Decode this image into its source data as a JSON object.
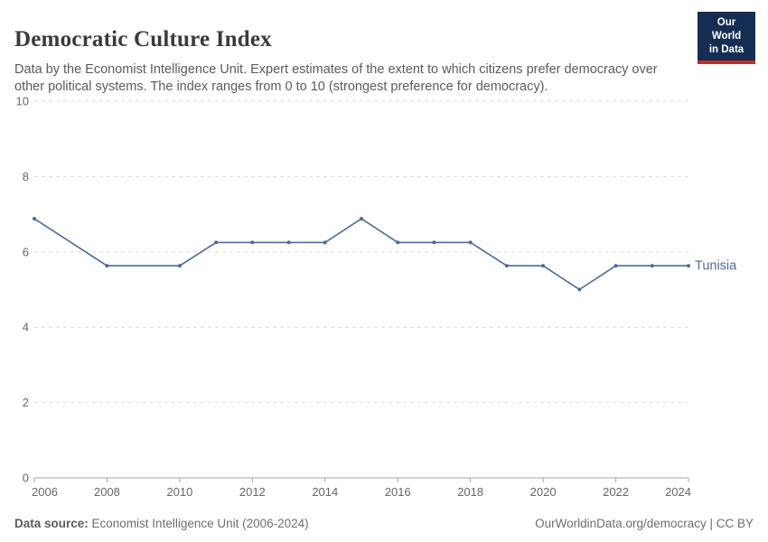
{
  "header": {
    "title": "Democratic Culture Index",
    "subtitle": "Data by the Economist Intelligence Unit. Expert estimates of the extent to which citizens prefer democracy over other political systems. The index ranges from 0 to 10 (strongest preference for democracy).",
    "logo": {
      "line1": "Our World",
      "line2": "in Data"
    }
  },
  "chart_data": {
    "type": "line",
    "title": "Democratic Culture Index",
    "xlabel": "",
    "ylabel": "",
    "xlim": [
      2006,
      2024
    ],
    "ylim": [
      0,
      10
    ],
    "x_ticks": [
      2006,
      2008,
      2010,
      2012,
      2014,
      2016,
      2018,
      2020,
      2022,
      2024
    ],
    "y_ticks": [
      0,
      2,
      4,
      6,
      8,
      10
    ],
    "grid": "horizontal-dashed",
    "legend_position": "end-of-line-label",
    "series": [
      {
        "name": "Tunisia",
        "color": "#4c6a9c",
        "points": [
          [
            2006,
            6.88
          ],
          [
            2008,
            5.63
          ],
          [
            2010,
            5.63
          ],
          [
            2011,
            6.25
          ],
          [
            2012,
            6.25
          ],
          [
            2013,
            6.25
          ],
          [
            2014,
            6.25
          ],
          [
            2015,
            6.88
          ],
          [
            2016,
            6.25
          ],
          [
            2017,
            6.25
          ],
          [
            2018,
            6.25
          ],
          [
            2019,
            5.63
          ],
          [
            2020,
            5.63
          ],
          [
            2021,
            5.0
          ],
          [
            2022,
            5.63
          ],
          [
            2023,
            5.63
          ],
          [
            2024,
            5.63
          ]
        ]
      }
    ]
  },
  "footer": {
    "datasource_label": "Data source:",
    "datasource_value": " Economist Intelligence Unit (2006-2024)",
    "link": "OurWorldinData.org/democracy | CC BY"
  },
  "colors": {
    "line": "#4c6a9c",
    "grid": "#dcdcdc",
    "axis": "#a5a5a5",
    "tick_text": "#666666",
    "logo_bg": "#152d52",
    "logo_red": "#d0281e"
  }
}
